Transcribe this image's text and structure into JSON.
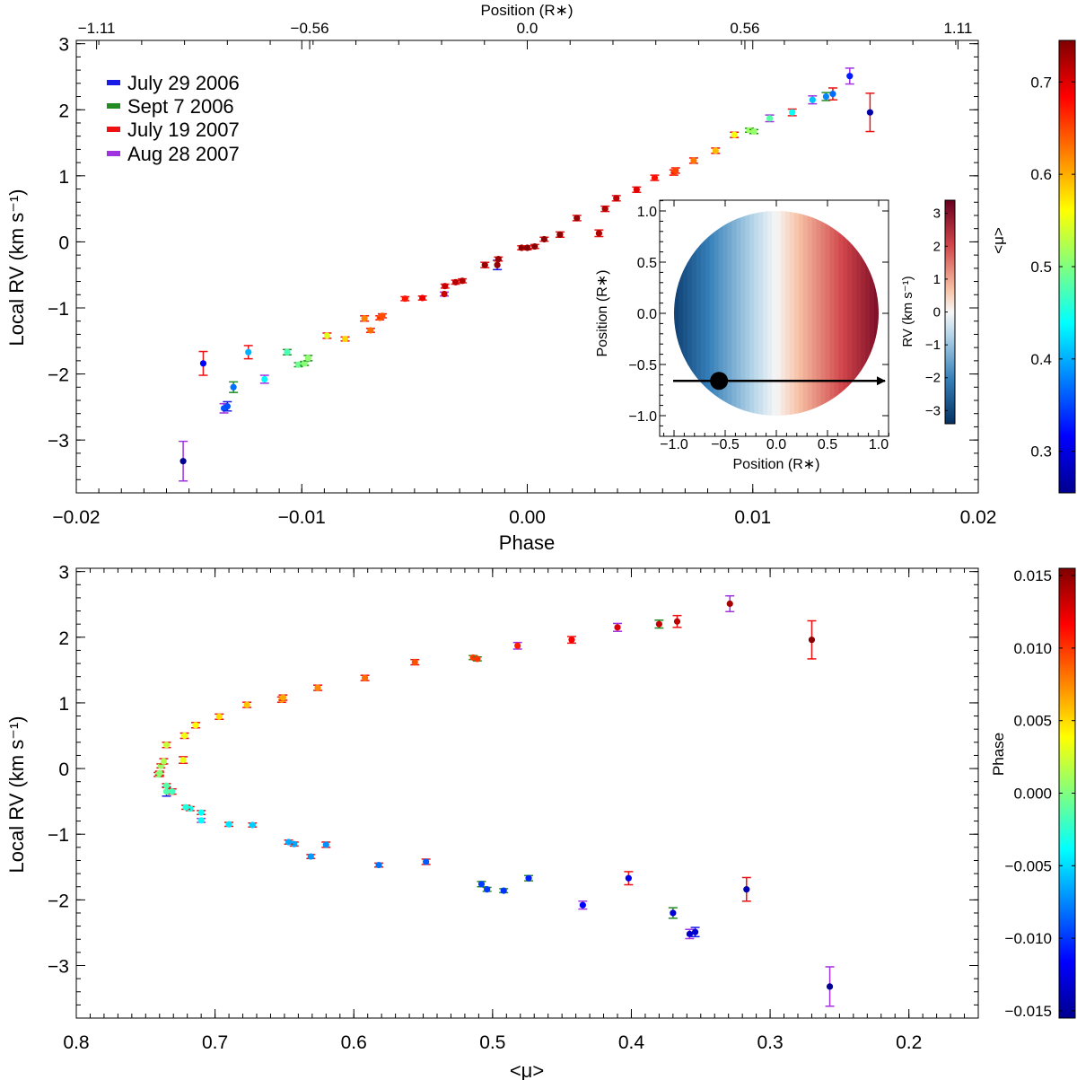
{
  "chart_data": [
    {
      "id": "top",
      "type": "scatter",
      "xlabel": "Phase",
      "ylabel": "Local RV (km s⁻¹)",
      "xlim": [
        -0.02,
        0.02
      ],
      "ylim": [
        -3.8,
        3.05
      ],
      "xticks": [
        -0.02,
        -0.01,
        0.0,
        0.01,
        0.02
      ],
      "xtick_labels": [
        "−0.02",
        "−0.01",
        "0.00",
        "0.01",
        "0.02"
      ],
      "yticks": [
        -3,
        -2,
        -1,
        0,
        1,
        2,
        3
      ],
      "ytick_labels": [
        "−3",
        "−2",
        "−1",
        "0",
        "1",
        "2",
        "3"
      ],
      "top_axis": {
        "label": "Position (R∗)",
        "ticks": [
          -0.0191,
          -0.00965,
          0.0,
          0.00965,
          0.0191
        ],
        "tick_labels": [
          "−1.11",
          "−0.56",
          "0.0",
          "0.56",
          "1.11"
        ]
      },
      "legend": {
        "placement": "top-left",
        "entries": [
          {
            "label": "July 29 2006",
            "color": "#1a1ae6"
          },
          {
            "label": "Sept 7 2006",
            "color": "#228b22"
          },
          {
            "label": "July 19 2007",
            "color": "#ee1111"
          },
          {
            "label": "Aug 28 2007",
            "color": "#a033e0"
          }
        ]
      },
      "colorbar": {
        "label": "<μ>",
        "range": [
          0.255,
          0.745
        ],
        "ticks": [
          0.3,
          0.4,
          0.5,
          0.6,
          0.7
        ],
        "tick_labels": [
          "0.3",
          "0.4",
          "0.5",
          "0.6",
          "0.7"
        ]
      },
      "inset": {
        "type": "heatmap",
        "description": "stellar disk velocity map",
        "xlabel": "Position (R∗)",
        "ylabel": "Position (R∗)",
        "xlim": [
          -1.1,
          1.1
        ],
        "ylim": [
          -1.1,
          1.1
        ],
        "xticks": [
          -1.0,
          -0.5,
          0.0,
          0.5,
          1.0
        ],
        "xtick_labels": [
          "−1.0",
          "−0.5",
          "0.0",
          "0.5",
          "1.0"
        ],
        "yticks": [
          -1.0,
          -0.5,
          0.0,
          0.5,
          1.0
        ],
        "ytick_labels": [
          "−1.0",
          "−0.5",
          "0.0",
          "0.5",
          "1.0"
        ],
        "planet_position": [
          -0.56,
          -0.66
        ],
        "transit_chord_y": -0.66,
        "colorbar": {
          "label": "RV (km s⁻¹)",
          "range": [
            -3.4,
            3.4
          ],
          "ticks": [
            -3,
            -2,
            -1,
            0,
            1,
            2,
            3
          ],
          "tick_labels": [
            "−3",
            "−2",
            "−1",
            "0",
            "1",
            "2",
            "3"
          ]
        }
      }
    },
    {
      "id": "bottom",
      "type": "scatter",
      "xlabel": "<μ>",
      "ylabel": "Local RV (km s⁻¹)",
      "xlim": [
        0.8,
        0.15
      ],
      "ylim": [
        -3.8,
        3.05
      ],
      "xticks": [
        0.8,
        0.7,
        0.6,
        0.5,
        0.4,
        0.3,
        0.2
      ],
      "xtick_labels": [
        "0.8",
        "0.7",
        "0.6",
        "0.5",
        "0.4",
        "0.3",
        "0.2"
      ],
      "yticks": [
        -3,
        -2,
        -1,
        0,
        1,
        2,
        3
      ],
      "ytick_labels": [
        "−3",
        "−2",
        "−1",
        "0",
        "1",
        "2",
        "3"
      ],
      "colorbar": {
        "label": "Phase",
        "range": [
          -0.0155,
          0.0155
        ],
        "ticks": [
          -0.015,
          -0.01,
          -0.005,
          0.0,
          0.005,
          0.01,
          0.015
        ],
        "tick_labels": [
          "−0.015",
          "−0.010",
          "−0.005",
          "0.000",
          "0.005",
          "0.010",
          "0.015"
        ]
      }
    }
  ],
  "points": [
    {
      "phase": -0.01526,
      "mu": 0.257,
      "rv": -3.32,
      "err": 0.3,
      "night": "Aug 28 2007"
    },
    {
      "phase": -0.01437,
      "mu": 0.317,
      "rv": -1.84,
      "err": 0.18,
      "night": "July 19 2007"
    },
    {
      "phase": -0.01345,
      "mu": 0.358,
      "rv": -2.52,
      "err": 0.07,
      "night": "Aug 28 2007"
    },
    {
      "phase": -0.0133,
      "mu": 0.354,
      "rv": -2.49,
      "err": 0.07,
      "night": "July 29 2006"
    },
    {
      "phase": -0.01303,
      "mu": 0.37,
      "rv": -2.2,
      "err": 0.08,
      "night": "Sept 7 2006"
    },
    {
      "phase": -0.01237,
      "mu": 0.402,
      "rv": -1.67,
      "err": 0.1,
      "night": "July 19 2007"
    },
    {
      "phase": -0.01165,
      "mu": 0.435,
      "rv": -2.08,
      "err": 0.06,
      "night": "Aug 28 2007"
    },
    {
      "phase": -0.01065,
      "mu": 0.474,
      "rv": -1.67,
      "err": 0.04,
      "night": "Sept 7 2006"
    },
    {
      "phase": -0.01015,
      "mu": 0.492,
      "rv": -1.86,
      "err": 0.03,
      "night": "Sept 7 2006"
    },
    {
      "phase": -0.00988,
      "mu": 0.504,
      "rv": -1.84,
      "err": 0.03,
      "night": "Sept 7 2006"
    },
    {
      "phase": -0.00972,
      "mu": 0.508,
      "rv": -1.76,
      "err": 0.04,
      "night": "Sept 7 2006"
    },
    {
      "phase": -0.00888,
      "mu": 0.548,
      "rv": -1.42,
      "err": 0.04,
      "night": "July 19 2007"
    },
    {
      "phase": -0.00808,
      "mu": 0.582,
      "rv": -1.47,
      "err": 0.03,
      "night": "July 19 2007"
    },
    {
      "phase": -0.00722,
      "mu": 0.62,
      "rv": -1.16,
      "err": 0.04,
      "night": "July 19 2007"
    },
    {
      "phase": -0.00695,
      "mu": 0.631,
      "rv": -1.34,
      "err": 0.03,
      "night": "July 19 2007"
    },
    {
      "phase": -0.00654,
      "mu": 0.643,
      "rv": -1.15,
      "err": 0.03,
      "night": "July 19 2007"
    },
    {
      "phase": -0.00643,
      "mu": 0.647,
      "rv": -1.12,
      "err": 0.03,
      "night": "July 19 2007"
    },
    {
      "phase": -0.00542,
      "mu": 0.673,
      "rv": -0.86,
      "err": 0.03,
      "night": "July 19 2007"
    },
    {
      "phase": -0.00465,
      "mu": 0.69,
      "rv": -0.85,
      "err": 0.03,
      "night": "July 19 2007"
    },
    {
      "phase": -0.00368,
      "mu": 0.71,
      "rv": -0.79,
      "err": 0.03,
      "night": "Aug 28 2007"
    },
    {
      "phase": -0.00365,
      "mu": 0.71,
      "rv": -0.67,
      "err": 0.03,
      "night": "July 19 2007"
    },
    {
      "phase": -0.00318,
      "mu": 0.718,
      "rv": -0.61,
      "err": 0.03,
      "night": "July 19 2007"
    },
    {
      "phase": -0.00288,
      "mu": 0.721,
      "rv": -0.59,
      "err": 0.03,
      "night": "July 19 2007"
    },
    {
      "phase": -0.00188,
      "mu": 0.731,
      "rv": -0.35,
      "err": 0.04,
      "night": "July 19 2007"
    },
    {
      "phase": -0.00133,
      "mu": 0.735,
      "rv": -0.35,
      "err": 0.07,
      "night": "July 29 2006"
    },
    {
      "phase": -0.00128,
      "mu": 0.735,
      "rv": -0.26,
      "err": 0.03,
      "night": "July 19 2007"
    },
    {
      "phase": -0.00025,
      "mu": 0.74,
      "rv": -0.09,
      "err": 0.03,
      "night": "July 19 2007"
    },
    {
      "phase": 0.0,
      "mu": 0.741,
      "rv": -0.09,
      "err": 0.03,
      "night": "July 19 2007"
    },
    {
      "phase": 0.00033,
      "mu": 0.74,
      "rv": -0.07,
      "err": 0.03,
      "night": "July 19 2007"
    },
    {
      "phase": 0.00075,
      "mu": 0.739,
      "rv": 0.04,
      "err": 0.03,
      "night": "July 19 2007"
    },
    {
      "phase": 0.00145,
      "mu": 0.737,
      "rv": 0.11,
      "err": 0.04,
      "night": "July 19 2007"
    },
    {
      "phase": 0.0022,
      "mu": 0.735,
      "rv": 0.36,
      "err": 0.04,
      "night": "July 19 2007"
    },
    {
      "phase": 0.00318,
      "mu": 0.723,
      "rv": 0.13,
      "err": 0.05,
      "night": "July 19 2007"
    },
    {
      "phase": 0.00345,
      "mu": 0.722,
      "rv": 0.5,
      "err": 0.04,
      "night": "July 19 2007"
    },
    {
      "phase": 0.00395,
      "mu": 0.714,
      "rv": 0.66,
      "err": 0.04,
      "night": "July 19 2007"
    },
    {
      "phase": 0.00485,
      "mu": 0.697,
      "rv": 0.79,
      "err": 0.04,
      "night": "July 19 2007"
    },
    {
      "phase": 0.00565,
      "mu": 0.677,
      "rv": 0.97,
      "err": 0.04,
      "night": "July 19 2007"
    },
    {
      "phase": 0.0065,
      "mu": 0.652,
      "rv": 1.05,
      "err": 0.04,
      "night": "July 19 2007"
    },
    {
      "phase": 0.00658,
      "mu": 0.651,
      "rv": 1.08,
      "err": 0.04,
      "night": "July 19 2007"
    },
    {
      "phase": 0.00738,
      "mu": 0.626,
      "rv": 1.23,
      "err": 0.04,
      "night": "July 19 2007"
    },
    {
      "phase": 0.00835,
      "mu": 0.592,
      "rv": 1.38,
      "err": 0.04,
      "night": "July 19 2007"
    },
    {
      "phase": 0.00918,
      "mu": 0.556,
      "rv": 1.62,
      "err": 0.04,
      "night": "July 19 2007"
    },
    {
      "phase": 0.00985,
      "mu": 0.514,
      "rv": 1.69,
      "err": 0.03,
      "night": "Sept 7 2006"
    },
    {
      "phase": 0.01005,
      "mu": 0.511,
      "rv": 1.67,
      "err": 0.03,
      "night": "Sept 7 2006"
    },
    {
      "phase": 0.01075,
      "mu": 0.482,
      "rv": 1.87,
      "err": 0.05,
      "night": "Aug 28 2007"
    },
    {
      "phase": 0.01175,
      "mu": 0.443,
      "rv": 1.96,
      "err": 0.05,
      "night": "July 19 2007"
    },
    {
      "phase": 0.01265,
      "mu": 0.41,
      "rv": 2.15,
      "err": 0.06,
      "night": "Aug 28 2007"
    },
    {
      "phase": 0.01325,
      "mu": 0.38,
      "rv": 2.2,
      "err": 0.06,
      "night": "Sept 7 2006"
    },
    {
      "phase": 0.01355,
      "mu": 0.367,
      "rv": 2.24,
      "err": 0.09,
      "night": "July 19 2007"
    },
    {
      "phase": 0.0143,
      "mu": 0.329,
      "rv": 2.51,
      "err": 0.12,
      "night": "Aug 28 2007"
    },
    {
      "phase": 0.0152,
      "mu": 0.27,
      "rv": 1.96,
      "err": 0.29,
      "night": "July 19 2007"
    }
  ]
}
